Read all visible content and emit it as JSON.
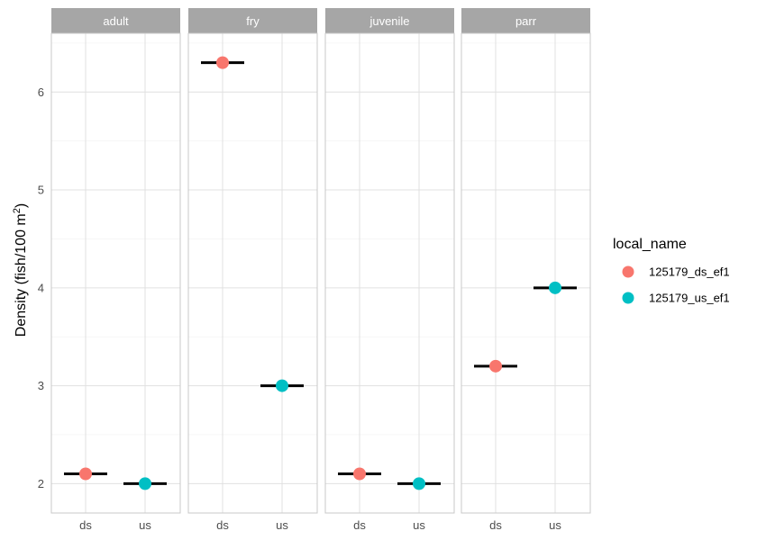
{
  "chart_data": {
    "type": "scatter",
    "facet_by": "life_stage",
    "panels": [
      "adult",
      "fry",
      "juvenile",
      "parr"
    ],
    "x_categories": [
      "ds",
      "us"
    ],
    "ylabel_main": "Density (fish/100 m",
    "ylabel_superscript": "2",
    "ylabel_close": ")",
    "ylim": [
      1.7,
      6.6
    ],
    "y_ticks": [
      2,
      3,
      4,
      5,
      6
    ],
    "grid": true,
    "legend": {
      "title": "local_name",
      "position": "right",
      "entries": [
        {
          "label": "125179_ds_ef1",
          "color": "#F8766D"
        },
        {
          "label": "125179_us_ef1",
          "color": "#00BFC4"
        }
      ]
    },
    "points": [
      {
        "panel": "adult",
        "x": "ds",
        "y": 2.1,
        "series": "125179_ds_ef1"
      },
      {
        "panel": "adult",
        "x": "us",
        "y": 2.0,
        "series": "125179_us_ef1"
      },
      {
        "panel": "fry",
        "x": "ds",
        "y": 6.3,
        "series": "125179_ds_ef1"
      },
      {
        "panel": "fry",
        "x": "us",
        "y": 3.0,
        "series": "125179_us_ef1"
      },
      {
        "panel": "juvenile",
        "x": "ds",
        "y": 2.1,
        "series": "125179_ds_ef1"
      },
      {
        "panel": "juvenile",
        "x": "us",
        "y": 2.0,
        "series": "125179_us_ef1"
      },
      {
        "panel": "parr",
        "x": "ds",
        "y": 3.2,
        "series": "125179_ds_ef1"
      },
      {
        "panel": "parr",
        "x": "us",
        "y": 4.0,
        "series": "125179_us_ef1"
      }
    ],
    "mean_bars": true
  }
}
